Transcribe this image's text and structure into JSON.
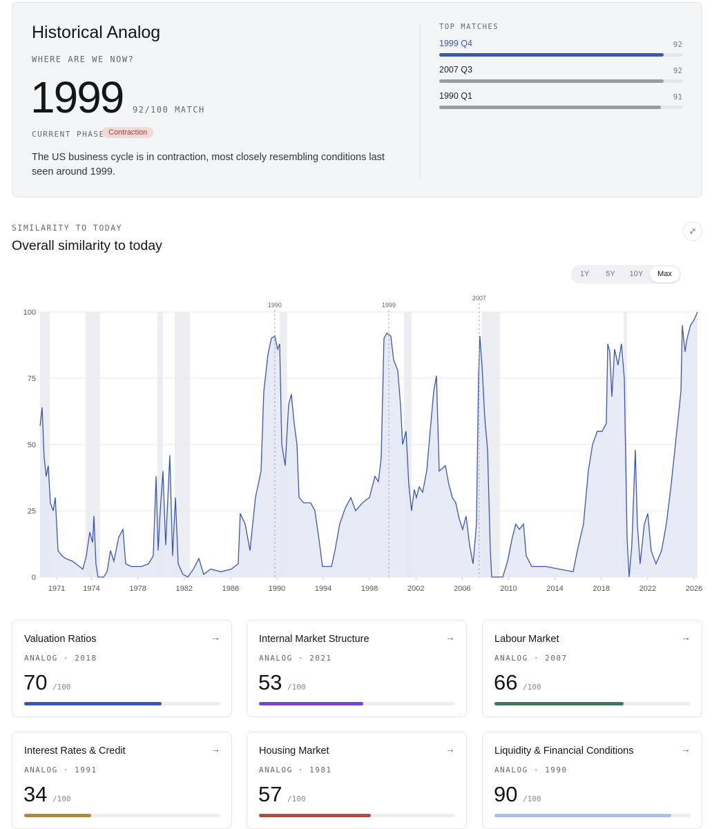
{
  "header": {
    "title": "Historical Analog",
    "question": "WHERE ARE WE NOW?",
    "analog_year": "1999",
    "match": "92/100 MATCH",
    "phase_label": "CURRENT PHASE",
    "phase": "Contraction",
    "description": "The US business cycle is in contraction, most closely resembling conditions last seen around 1999."
  },
  "score_scale": {
    "value": 100,
    "label": "/100"
  },
  "top_matches": {
    "title": "TOP MATCHES",
    "items": [
      {
        "label": "1999 Q4",
        "score": 92,
        "color": "#3a56b0"
      },
      {
        "label": "2007 Q3",
        "score": 92,
        "color": "#9a9ca3"
      },
      {
        "label": "1990 Q1",
        "score": 91,
        "color": "#9a9ca3"
      }
    ]
  },
  "section": {
    "kicker": "SIMILARITY TO TODAY",
    "title": "Overall similarity to today",
    "ranges": [
      "1Y",
      "5Y",
      "10Y",
      "Max"
    ],
    "active_range": "Max"
  },
  "chart_data": {
    "type": "area",
    "color": "#3a56b0",
    "fill": "#e3e8f5",
    "x": [
      1969.56,
      1969.74,
      1969.91,
      1970.09,
      1970.27,
      1970.45,
      1970.69,
      1970.87,
      1971.11,
      1971.46,
      1971.76,
      1972.36,
      1972.95,
      1973.25,
      1973.55,
      1973.85,
      1974.09,
      1974.21,
      1974.38,
      1974.56,
      1975.04,
      1975.34,
      1975.64,
      1975.93,
      1976.35,
      1976.71,
      1976.95,
      1977.42,
      1978.32,
      1978.91,
      1979.33,
      1979.57,
      1979.75,
      1979.93,
      1980.17,
      1980.4,
      1980.76,
      1981.0,
      1981.24,
      1981.48,
      1981.89,
      1982.31,
      1982.79,
      1983.27,
      1983.68,
      1984.28,
      1985.17,
      1986.07,
      1986.66,
      1986.84,
      1987.26,
      1987.68,
      1988.15,
      1988.63,
      1988.87,
      1989.23,
      1989.52,
      1989.82,
      1990.06,
      1990.24,
      1990.42,
      1990.72,
      1991.01,
      1991.25,
      1991.49,
      1991.73,
      1991.91,
      1992.32,
      1992.92,
      1993.28,
      1993.64,
      1993.93,
      1994.71,
      1995.01,
      1995.42,
      1995.9,
      1996.38,
      1996.79,
      1997.39,
      1997.99,
      1998.46,
      1998.76,
      1999.0,
      1999.24,
      1999.48,
      1999.83,
      2000.07,
      2000.43,
      2000.67,
      2000.85,
      2001.15,
      2001.38,
      2001.62,
      2001.86,
      2002.04,
      2002.28,
      2002.58,
      2002.93,
      2003.23,
      2003.53,
      2003.77,
      2004.01,
      2004.54,
      2004.84,
      2005.14,
      2005.44,
      2005.73,
      2006.03,
      2006.33,
      2006.63,
      2006.93,
      2007.22,
      2007.4,
      2007.52,
      2007.7,
      2007.94,
      2008.18,
      2008.42,
      2008.54,
      2009.49,
      2009.91,
      2010.32,
      2010.62,
      2010.92,
      2011.28,
      2011.52,
      2011.99,
      2013.18,
      2014.38,
      2015.57,
      2015.93,
      2016.46,
      2016.88,
      2017.24,
      2017.65,
      2018.07,
      2018.43,
      2018.55,
      2018.73,
      2018.91,
      2019.14,
      2019.44,
      2019.74,
      2019.98,
      2020.22,
      2020.4,
      2020.63,
      2020.93,
      2021.11,
      2021.35,
      2021.71,
      2022.01,
      2022.3,
      2022.72,
      2023.2,
      2023.61,
      2024.03,
      2024.51,
      2024.87,
      2024.99,
      2025.22,
      2025.4,
      2025.7,
      2026.0,
      2026.3
    ],
    "values": [
      57,
      64,
      45,
      38,
      42,
      28,
      25,
      30,
      10,
      8,
      7,
      6,
      4,
      3,
      8,
      17,
      13,
      23,
      5,
      0,
      0,
      2,
      10,
      6,
      15,
      18,
      5,
      4,
      4,
      5,
      8,
      38,
      10,
      25,
      40,
      12,
      46,
      8,
      30,
      5,
      1,
      0,
      3,
      7,
      1,
      3,
      2,
      3,
      5,
      24,
      20,
      10,
      30,
      40,
      70,
      84,
      90,
      91,
      86,
      88,
      50,
      42,
      65,
      69,
      58,
      50,
      30,
      28,
      28,
      25,
      14,
      4,
      4,
      10,
      20,
      26,
      30,
      25,
      28,
      30,
      38,
      36,
      45,
      90,
      92,
      91,
      82,
      78,
      65,
      50,
      55,
      35,
      25,
      33,
      30,
      34,
      32,
      40,
      55,
      70,
      76,
      40,
      42,
      35,
      30,
      28,
      22,
      18,
      23,
      12,
      5,
      20,
      75,
      91,
      80,
      60,
      48,
      10,
      0,
      0,
      6,
      15,
      20,
      18,
      20,
      8,
      4,
      4,
      3,
      2,
      10,
      20,
      40,
      50,
      55,
      55,
      58,
      88,
      85,
      68,
      86,
      80,
      88,
      75,
      15,
      0,
      12,
      48,
      20,
      5,
      20,
      24,
      10,
      5,
      10,
      20,
      35,
      55,
      70,
      95,
      85,
      90,
      95,
      97,
      100
    ],
    "xlim": [
      1969.5,
      2026.3
    ],
    "ylim": [
      0,
      100
    ],
    "xticks": [
      1971,
      1974,
      1978,
      1982,
      1986,
      1990,
      1994,
      1998,
      2002,
      2006,
      2010,
      2014,
      2018,
      2022,
      2026
    ],
    "yticks": [
      0,
      25,
      50,
      75,
      100
    ],
    "grid": true,
    "shaded": [
      [
        1969.56,
        1970.39
      ],
      [
        1973.49,
        1974.74
      ],
      [
        1979.69,
        1980.17
      ],
      [
        1981.18,
        1982.49
      ],
      [
        1990.24,
        1990.89
      ],
      [
        2000.97,
        2001.62
      ],
      [
        2007.7,
        2009.25
      ],
      [
        2019.92,
        2020.22
      ]
    ],
    "annotations": [
      {
        "x": 1989.82,
        "label": "1990"
      },
      {
        "x": 1999.66,
        "label": "1999"
      },
      {
        "x": 2007.46,
        "label": "2007"
      }
    ]
  },
  "modules": [
    {
      "title": "Valuation Ratios",
      "analog": "ANALOG · 2018",
      "score": 70,
      "color": "#3a56b0"
    },
    {
      "title": "Internal Market Structure",
      "analog": "ANALOG · 2021",
      "score": 53,
      "color": "#7a3fe0"
    },
    {
      "title": "Labour Market",
      "analog": "ANALOG · 2007",
      "score": 66,
      "color": "#3d7a57"
    },
    {
      "title": "Interest Rates & Credit",
      "analog": "ANALOG · 1991",
      "score": 34,
      "color": "#b8862e"
    },
    {
      "title": "Housing Market",
      "analog": "ANALOG · 1981",
      "score": 57,
      "color": "#b04a3f"
    },
    {
      "title": "Liquidity & Financial Conditions",
      "analog": "ANALOG · 1990",
      "score": 90,
      "color": "#a9c0e8"
    }
  ]
}
